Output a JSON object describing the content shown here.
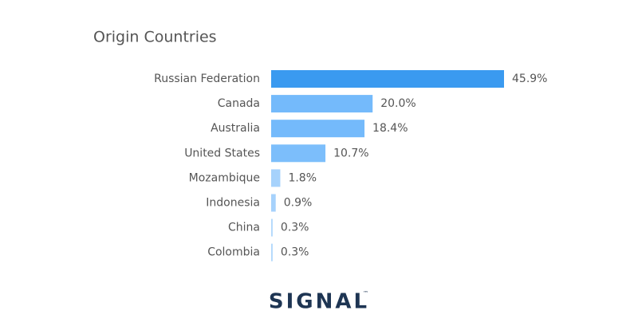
{
  "chart_data": {
    "type": "bar",
    "orientation": "horizontal",
    "title": "Origin Countries",
    "categories": [
      "Russian Federation",
      "Canada",
      "Australia",
      "United States",
      "Mozambique",
      "Indonesia",
      "China",
      "Colombia"
    ],
    "values": [
      45.9,
      20.0,
      18.4,
      10.7,
      1.8,
      0.9,
      0.3,
      0.3
    ],
    "value_labels": [
      "45.9%",
      "20.0%",
      "18.4%",
      "10.7%",
      "1.8%",
      "0.9%",
      "0.3%",
      "0.3%"
    ],
    "colors": [
      "#3a9af0",
      "#74bafb",
      "#74bafb",
      "#7cbefb",
      "#a6d2fc",
      "#a6d2fc",
      "#b3d9fc",
      "#b3d9fc"
    ]
  },
  "footer": {
    "logo": "SIGNAL",
    "trademark": "™"
  }
}
